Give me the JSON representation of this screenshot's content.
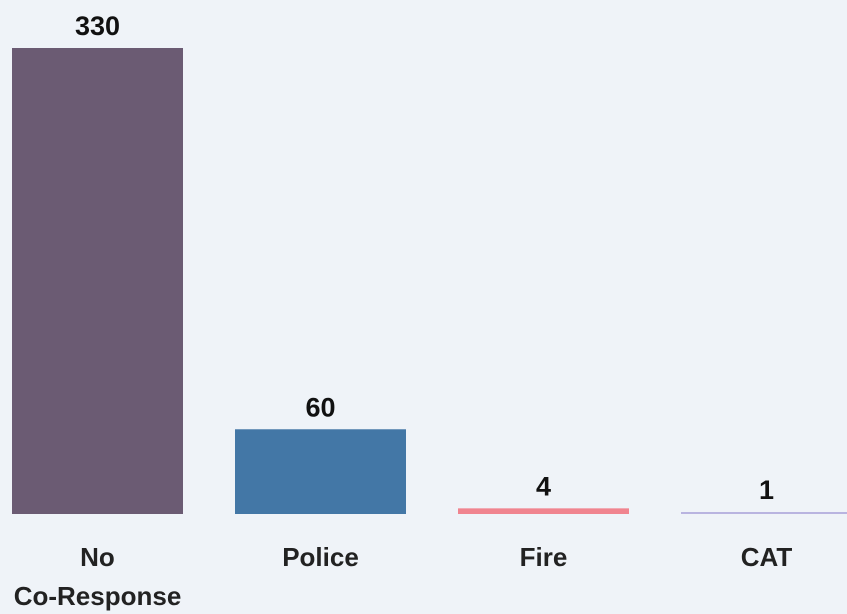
{
  "chart_data": {
    "type": "bar",
    "categories": [
      [
        "No",
        "Co-Response"
      ],
      [
        "Police"
      ],
      [
        "Fire"
      ],
      [
        "CAT"
      ]
    ],
    "values": [
      330,
      60,
      4,
      1
    ],
    "value_labels": [
      "330",
      "60",
      "4",
      "1"
    ],
    "colors": [
      "#6b5b73",
      "#4377a6",
      "#f0848f",
      "#b9b4e0"
    ],
    "title": "",
    "xlabel": "",
    "ylabel": "",
    "ylim": [
      0,
      330
    ],
    "grid": false,
    "legend": "none"
  }
}
